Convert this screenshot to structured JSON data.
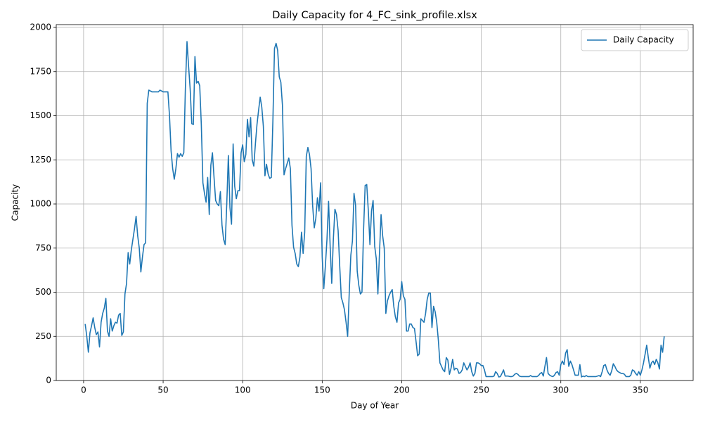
{
  "chart_data": {
    "type": "line",
    "title": "Daily Capacity for 4_FC_sink_profile.xlsx",
    "x_label": "Day of Year",
    "y_label": "Capacity",
    "x": [
      1,
      2,
      3,
      4,
      5,
      6,
      7,
      8,
      9,
      10,
      11,
      12,
      13,
      14,
      15,
      16,
      17,
      18,
      19,
      20,
      21,
      22,
      23,
      24,
      25,
      26,
      27,
      28,
      29,
      30,
      31,
      32,
      33,
      34,
      35,
      36,
      37,
      38,
      39,
      40,
      41,
      42,
      43,
      44,
      45,
      46,
      47,
      48,
      49,
      50,
      51,
      52,
      53,
      54,
      55,
      56,
      57,
      58,
      59,
      60,
      61,
      62,
      63,
      64,
      65,
      66,
      67,
      68,
      69,
      70,
      71,
      72,
      73,
      74,
      75,
      76,
      77,
      78,
      79,
      80,
      81,
      82,
      83,
      84,
      85,
      86,
      87,
      88,
      89,
      90,
      91,
      92,
      93,
      94,
      95,
      96,
      97,
      98,
      99,
      100,
      101,
      102,
      103,
      104,
      105,
      106,
      107,
      108,
      109,
      110,
      111,
      112,
      113,
      114,
      115,
      116,
      117,
      118,
      119,
      120,
      121,
      122,
      123,
      124,
      125,
      126,
      127,
      128,
      129,
      130,
      131,
      132,
      133,
      134,
      135,
      136,
      137,
      138,
      139,
      140,
      141,
      142,
      143,
      144,
      145,
      146,
      147,
      148,
      149,
      150,
      151,
      152,
      153,
      154,
      155,
      156,
      157,
      158,
      159,
      160,
      161,
      162,
      163,
      164,
      165,
      166,
      167,
      168,
      169,
      170,
      171,
      172,
      173,
      174,
      175,
      176,
      177,
      178,
      179,
      180,
      181,
      182,
      183,
      184,
      185,
      186,
      187,
      188,
      189,
      190,
      191,
      192,
      193,
      194,
      195,
      196,
      197,
      198,
      199,
      200,
      201,
      202,
      203,
      204,
      205,
      206,
      207,
      208,
      209,
      210,
      211,
      212,
      213,
      214,
      215,
      216,
      217,
      218,
      219,
      220,
      221,
      222,
      223,
      224,
      225,
      226,
      227,
      228,
      229,
      230,
      231,
      232,
      233,
      234,
      235,
      236,
      237,
      238,
      239,
      240,
      241,
      242,
      243,
      244,
      245,
      246,
      247,
      248,
      249,
      250,
      251,
      252,
      253,
      254,
      255,
      256,
      257,
      258,
      259,
      260,
      261,
      262,
      263,
      264,
      265,
      266,
      267,
      268,
      269,
      270,
      271,
      272,
      273,
      274,
      275,
      276,
      277,
      278,
      279,
      280,
      281,
      282,
      283,
      284,
      285,
      286,
      287,
      288,
      289,
      290,
      291,
      292,
      293,
      294,
      295,
      296,
      297,
      298,
      299,
      300,
      301,
      302,
      303,
      304,
      305,
      306,
      307,
      308,
      309,
      310,
      311,
      312,
      313,
      314,
      315,
      316,
      317,
      318,
      319,
      320,
      321,
      322,
      323,
      324,
      325,
      326,
      327,
      328,
      329,
      330,
      331,
      332,
      333,
      334,
      335,
      336,
      337,
      338,
      339,
      340,
      341,
      342,
      343,
      344,
      345,
      346,
      347,
      348,
      349,
      350,
      351,
      352,
      353,
      354,
      355,
      356,
      357,
      358,
      359,
      360,
      361,
      362,
      363,
      364,
      365
    ],
    "series": [
      {
        "name": "Daily Capacity",
        "color": "#1f77b4",
        "values": [
          320,
          250,
          160,
          270,
          310,
          355,
          300,
          260,
          275,
          190,
          330,
          380,
          410,
          465,
          280,
          250,
          350,
          280,
          310,
          330,
          325,
          370,
          380,
          255,
          275,
          490,
          550,
          725,
          660,
          740,
          800,
          860,
          930,
          820,
          750,
          615,
          700,
          770,
          780,
          1570,
          1645,
          1640,
          1635,
          1635,
          1635,
          1635,
          1635,
          1645,
          1640,
          1635,
          1635,
          1635,
          1635,
          1500,
          1300,
          1200,
          1140,
          1200,
          1285,
          1265,
          1285,
          1270,
          1290,
          1660,
          1920,
          1780,
          1650,
          1455,
          1450,
          1835,
          1685,
          1695,
          1670,
          1450,
          1120,
          1060,
          1010,
          1150,
          940,
          1220,
          1290,
          1150,
          1020,
          1000,
          990,
          1070,
          880,
          800,
          770,
          1000,
          1275,
          980,
          885,
          1340,
          1100,
          1030,
          1075,
          1075,
          1290,
          1335,
          1240,
          1280,
          1480,
          1380,
          1490,
          1250,
          1215,
          1340,
          1450,
          1530,
          1605,
          1550,
          1440,
          1160,
          1225,
          1170,
          1145,
          1150,
          1470,
          1880,
          1910,
          1870,
          1720,
          1690,
          1560,
          1165,
          1200,
          1230,
          1260,
          1200,
          880,
          755,
          720,
          660,
          645,
          700,
          840,
          720,
          840,
          1270,
          1320,
          1280,
          1200,
          990,
          865,
          920,
          1035,
          960,
          1120,
          700,
          520,
          650,
          800,
          1015,
          760,
          550,
          800,
          970,
          940,
          850,
          650,
          470,
          440,
          400,
          330,
          250,
          500,
          710,
          790,
          1060,
          990,
          620,
          540,
          490,
          500,
          850,
          1105,
          1110,
          960,
          770,
          960,
          1020,
          760,
          690,
          490,
          720,
          940,
          820,
          750,
          380,
          450,
          480,
          500,
          515,
          420,
          360,
          330,
          440,
          460,
          560,
          480,
          460,
          280,
          280,
          320,
          320,
          300,
          295,
          220,
          140,
          150,
          350,
          340,
          330,
          380,
          460,
          495,
          495,
          300,
          420,
          390,
          330,
          230,
          100,
          80,
          60,
          50,
          130,
          115,
          35,
          70,
          120,
          60,
          70,
          65,
          40,
          45,
          60,
          100,
          80,
          60,
          75,
          100,
          50,
          25,
          40,
          100,
          100,
          95,
          85,
          85,
          60,
          22,
          22,
          22,
          22,
          22,
          25,
          50,
          40,
          20,
          22,
          40,
          60,
          25,
          25,
          25,
          22,
          22,
          25,
          35,
          40,
          35,
          25,
          22,
          22,
          22,
          22,
          22,
          22,
          28,
          22,
          22,
          22,
          22,
          28,
          40,
          45,
          25,
          80,
          130,
          40,
          30,
          25,
          22,
          30,
          45,
          50,
          30,
          90,
          110,
          90,
          155,
          175,
          80,
          110,
          90,
          60,
          30,
          30,
          30,
          90,
          20,
          25,
          22,
          28,
          22,
          22,
          22,
          22,
          22,
          22,
          25,
          28,
          22,
          50,
          85,
          90,
          60,
          40,
          30,
          55,
          95,
          80,
          60,
          50,
          45,
          40,
          40,
          35,
          22,
          22,
          22,
          30,
          60,
          55,
          40,
          30,
          50,
          30,
          60,
          100,
          150,
          200,
          130,
          70,
          100,
          110,
          90,
          120,
          100,
          65,
          200,
          160,
          250
        ]
      }
    ],
    "xlim": [
      -17.2,
      383.2
    ],
    "xticks": [
      0,
      50,
      100,
      150,
      200,
      250,
      300,
      350
    ],
    "ylim": [
      0,
      2016
    ],
    "yticks": [
      0,
      250,
      500,
      750,
      1000,
      1250,
      1500,
      1750,
      2000
    ],
    "grid": true,
    "legend": "upper right"
  }
}
